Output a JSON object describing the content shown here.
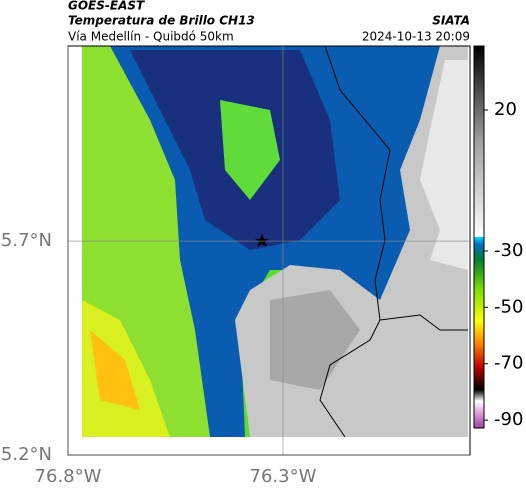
{
  "header": {
    "title": "GOES-EAST",
    "subtitle": "Temperatura de Brillo CH13",
    "region": "Vía Medellín - Quibdó 50km",
    "source": "SIATA",
    "datetime": "2024-10-13 20:09"
  },
  "map": {
    "xlim": [
      -76.8,
      -75.865
    ],
    "ylim": [
      5.2,
      6.156
    ],
    "xticks": [
      {
        "value": -76.8,
        "label": "76.8°W"
      },
      {
        "value": -76.3,
        "label": "76.3°W"
      }
    ],
    "yticks": [
      {
        "value": 5.2,
        "label": "5.2°N"
      },
      {
        "value": 5.7,
        "label": "5.7°N"
      }
    ],
    "grid": true
  },
  "colorbar": {
    "lim": [
      -92.8,
      42.7
    ],
    "ticks": [
      20,
      -30,
      -50,
      -70,
      -90
    ]
  }
}
